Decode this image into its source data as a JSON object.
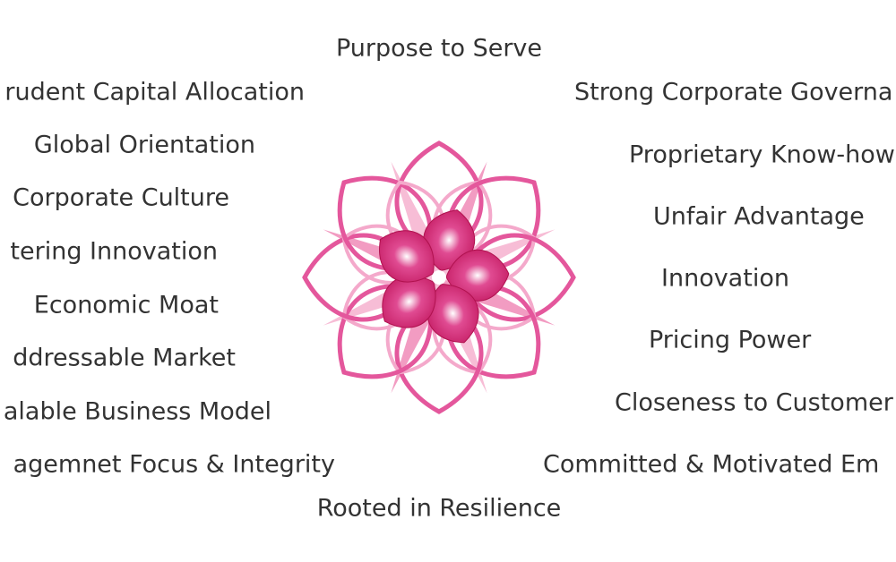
{
  "title": "Purpose to Serve",
  "footer": "Rooted in Resilience",
  "left": [
    "rudent Capital Allocation",
    "Global Orientation",
    "Corporate Culture",
    "tering Innovation",
    "Economic Moat",
    "ddressable Market",
    "alable Business Model",
    "agemnet Focus & Integrity"
  ],
  "right": [
    "Strong Corporate Governa",
    "Proprietary Know-how",
    "Unfair Advantage",
    "Innovation",
    "Pricing Power",
    "Closeness to Customer",
    "Committed & Motivated Em"
  ]
}
